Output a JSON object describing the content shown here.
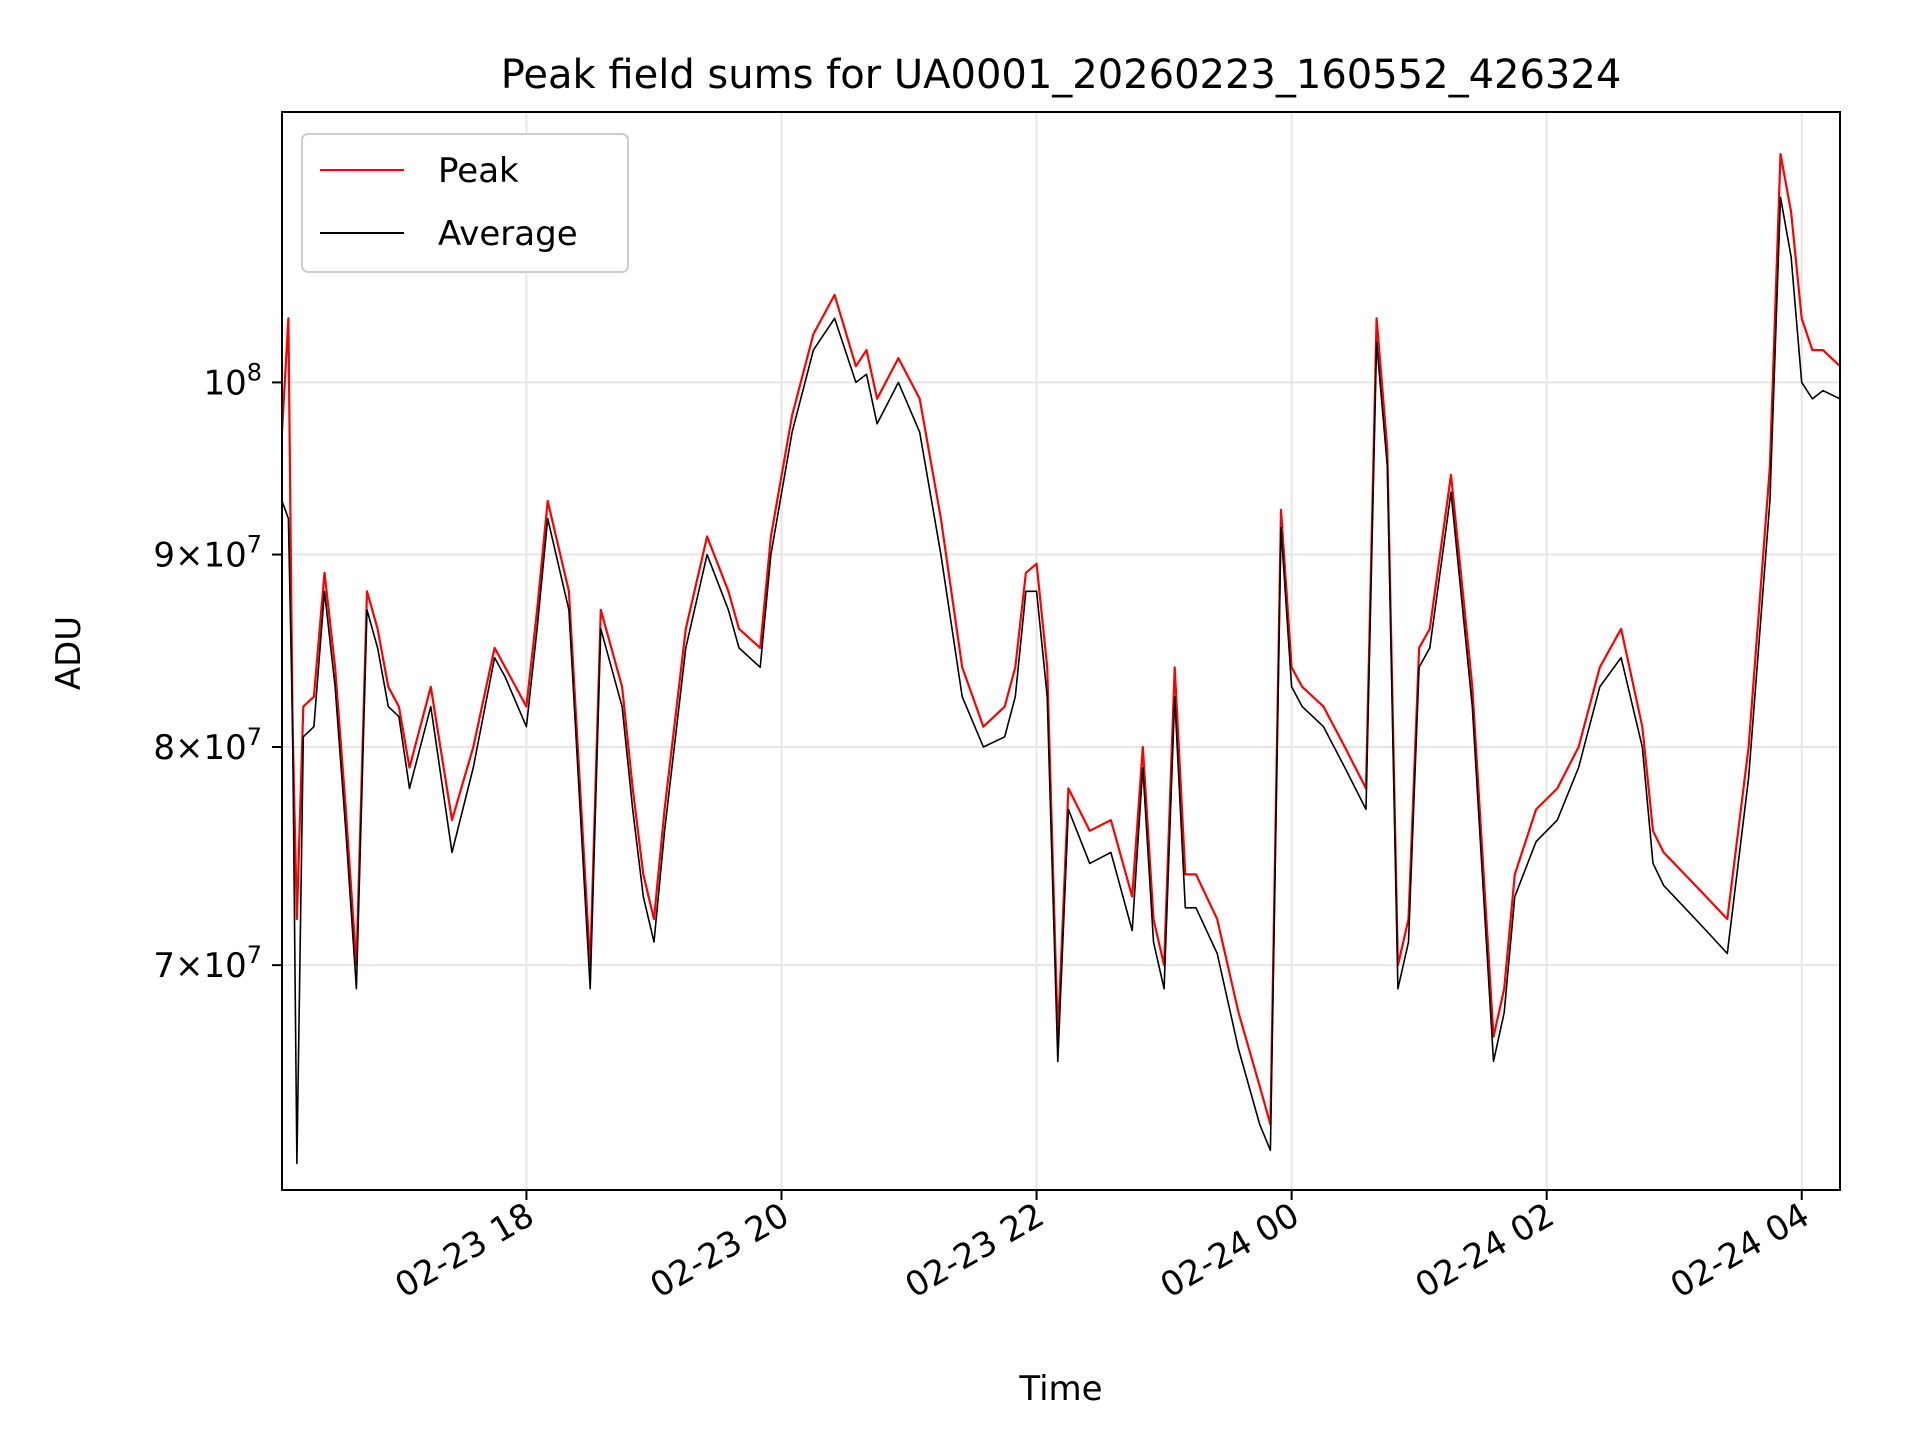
{
  "chart_data": {
    "type": "line",
    "title": "Peak field sums for UA0001_20260223_160552_426324",
    "xlabel": "Time",
    "ylabel": "ADU",
    "y_scale": "log",
    "grid": true,
    "legend_placement": "top-left",
    "x_range": [
      "2026-02-23 16:05",
      "2026-02-24 04:18"
    ],
    "ylim": [
      61000000,
      118000000
    ],
    "x_ticks": [
      {
        "value": "2026-02-23 18:00",
        "label": "02-23 18"
      },
      {
        "value": "2026-02-23 20:00",
        "label": "02-23 20"
      },
      {
        "value": "2026-02-23 22:00",
        "label": "02-23 22"
      },
      {
        "value": "2026-02-24 00:00",
        "label": "02-24 00"
      },
      {
        "value": "2026-02-24 02:00",
        "label": "02-24 02"
      },
      {
        "value": "2026-02-24 04:00",
        "label": "02-24 04"
      }
    ],
    "y_ticks": [
      {
        "value": 70000000,
        "mantissa": "7",
        "exp": "7"
      },
      {
        "value": 80000000,
        "mantissa": "8",
        "exp": "7"
      },
      {
        "value": 90000000,
        "mantissa": "9",
        "exp": "7"
      },
      {
        "value": 100000000,
        "mantissa": "",
        "exp": "8"
      }
    ],
    "x": [
      "2026-02-23 16:05",
      "2026-02-23 16:08",
      "2026-02-23 16:10",
      "2026-02-23 16:12",
      "2026-02-23 16:15",
      "2026-02-23 16:20",
      "2026-02-23 16:25",
      "2026-02-23 16:30",
      "2026-02-23 16:35",
      "2026-02-23 16:40",
      "2026-02-23 16:45",
      "2026-02-23 16:50",
      "2026-02-23 16:55",
      "2026-02-23 17:00",
      "2026-02-23 17:05",
      "2026-02-23 17:15",
      "2026-02-23 17:25",
      "2026-02-23 17:35",
      "2026-02-23 17:45",
      "2026-02-23 17:50",
      "2026-02-23 18:00",
      "2026-02-23 18:05",
      "2026-02-23 18:10",
      "2026-02-23 18:20",
      "2026-02-23 18:30",
      "2026-02-23 18:35",
      "2026-02-23 18:45",
      "2026-02-23 18:50",
      "2026-02-23 18:55",
      "2026-02-23 19:00",
      "2026-02-23 19:05",
      "2026-02-23 19:15",
      "2026-02-23 19:25",
      "2026-02-23 19:35",
      "2026-02-23 19:40",
      "2026-02-23 19:50",
      "2026-02-23 19:55",
      "2026-02-23 20:05",
      "2026-02-23 20:15",
      "2026-02-23 20:25",
      "2026-02-23 20:35",
      "2026-02-23 20:40",
      "2026-02-23 20:45",
      "2026-02-23 20:55",
      "2026-02-23 21:05",
      "2026-02-23 21:15",
      "2026-02-23 21:25",
      "2026-02-23 21:35",
      "2026-02-23 21:45",
      "2026-02-23 21:50",
      "2026-02-23 21:55",
      "2026-02-23 22:00",
      "2026-02-23 22:05",
      "2026-02-23 22:10",
      "2026-02-23 22:15",
      "2026-02-23 22:25",
      "2026-02-23 22:35",
      "2026-02-23 22:45",
      "2026-02-23 22:50",
      "2026-02-23 22:55",
      "2026-02-23 23:00",
      "2026-02-23 23:05",
      "2026-02-23 23:10",
      "2026-02-23 23:15",
      "2026-02-23 23:25",
      "2026-02-23 23:35",
      "2026-02-23 23:45",
      "2026-02-23 23:50",
      "2026-02-23 23:55",
      "2026-02-24 00:00",
      "2026-02-24 00:05",
      "2026-02-24 00:15",
      "2026-02-24 00:25",
      "2026-02-24 00:35",
      "2026-02-24 00:40",
      "2026-02-24 00:45",
      "2026-02-24 00:50",
      "2026-02-24 00:55",
      "2026-02-24 01:00",
      "2026-02-24 01:05",
      "2026-02-24 01:15",
      "2026-02-24 01:25",
      "2026-02-24 01:35",
      "2026-02-24 01:40",
      "2026-02-24 01:45",
      "2026-02-24 01:55",
      "2026-02-24 02:05",
      "2026-02-24 02:15",
      "2026-02-24 02:25",
      "2026-02-24 02:35",
      "2026-02-24 02:45",
      "2026-02-24 02:50",
      "2026-02-24 02:55",
      "2026-02-24 03:05",
      "2026-02-24 03:15",
      "2026-02-24 03:25",
      "2026-02-24 03:35",
      "2026-02-24 03:45",
      "2026-02-24 03:50",
      "2026-02-24 03:55",
      "2026-02-24 04:00",
      "2026-02-24 04:05",
      "2026-02-24 04:10",
      "2026-02-24 04:18"
    ],
    "series": [
      {
        "name": "Peak",
        "color": "#ff0000",
        "values": [
          97000000,
          104000000,
          81000000,
          72000000,
          82000000,
          82500000,
          89000000,
          84000000,
          77000000,
          70000000,
          88000000,
          86000000,
          83000000,
          82000000,
          79000000,
          83000000,
          76500000,
          80000000,
          85000000,
          84000000,
          82000000,
          87000000,
          93000000,
          88000000,
          70000000,
          87000000,
          83000000,
          78000000,
          74000000,
          72000000,
          77000000,
          86000000,
          91000000,
          88000000,
          86000000,
          85000000,
          91000000,
          98000000,
          103000000,
          105500000,
          101000000,
          102000000,
          99000000,
          101500000,
          99000000,
          92000000,
          84000000,
          81000000,
          82000000,
          84000000,
          89000000,
          89500000,
          84000000,
          67000000,
          78000000,
          76000000,
          76500000,
          73000000,
          80000000,
          72000000,
          70000000,
          84000000,
          74000000,
          74000000,
          72000000,
          68000000,
          65000000,
          63500000,
          92500000,
          84000000,
          83000000,
          82000000,
          80000000,
          78000000,
          104000000,
          96000000,
          70000000,
          72000000,
          85000000,
          86000000,
          94500000,
          83000000,
          67000000,
          69000000,
          74000000,
          77000000,
          78000000,
          80000000,
          84000000,
          86000000,
          81000000,
          76000000,
          75000000,
          74000000,
          73000000,
          72000000,
          80000000,
          95000000,
          115000000,
          111000000,
          104000000,
          102000000,
          102000000,
          101000000
        ]
      },
      {
        "name": "Average",
        "color": "#000000",
        "values": [
          93000000,
          92000000,
          81000000,
          62000000,
          80500000,
          81000000,
          88000000,
          83000000,
          76000000,
          69000000,
          87000000,
          85000000,
          82000000,
          81500000,
          78000000,
          82000000,
          75000000,
          79000000,
          84500000,
          83500000,
          81000000,
          86000000,
          92000000,
          87000000,
          69000000,
          86000000,
          82000000,
          77000000,
          73000000,
          71000000,
          76000000,
          85000000,
          90000000,
          87000000,
          85000000,
          84000000,
          90000000,
          97000000,
          102000000,
          104000000,
          100000000,
          100500000,
          97500000,
          100000000,
          97000000,
          90000000,
          82500000,
          80000000,
          80500000,
          82500000,
          88000000,
          88000000,
          82500000,
          66000000,
          77000000,
          74500000,
          75000000,
          71500000,
          79000000,
          71000000,
          69000000,
          82500000,
          72500000,
          72500000,
          70500000,
          66500000,
          63500000,
          62500000,
          91500000,
          83000000,
          82000000,
          81000000,
          79000000,
          77000000,
          102500000,
          95000000,
          69000000,
          71000000,
          84000000,
          85000000,
          93500000,
          82000000,
          66000000,
          68000000,
          73000000,
          75500000,
          76500000,
          79000000,
          83000000,
          84500000,
          80000000,
          74500000,
          73500000,
          72500000,
          71500000,
          70500000,
          78500000,
          93000000,
          112000000,
          108000000,
          100000000,
          99000000,
          99500000,
          99000000
        ]
      }
    ]
  }
}
